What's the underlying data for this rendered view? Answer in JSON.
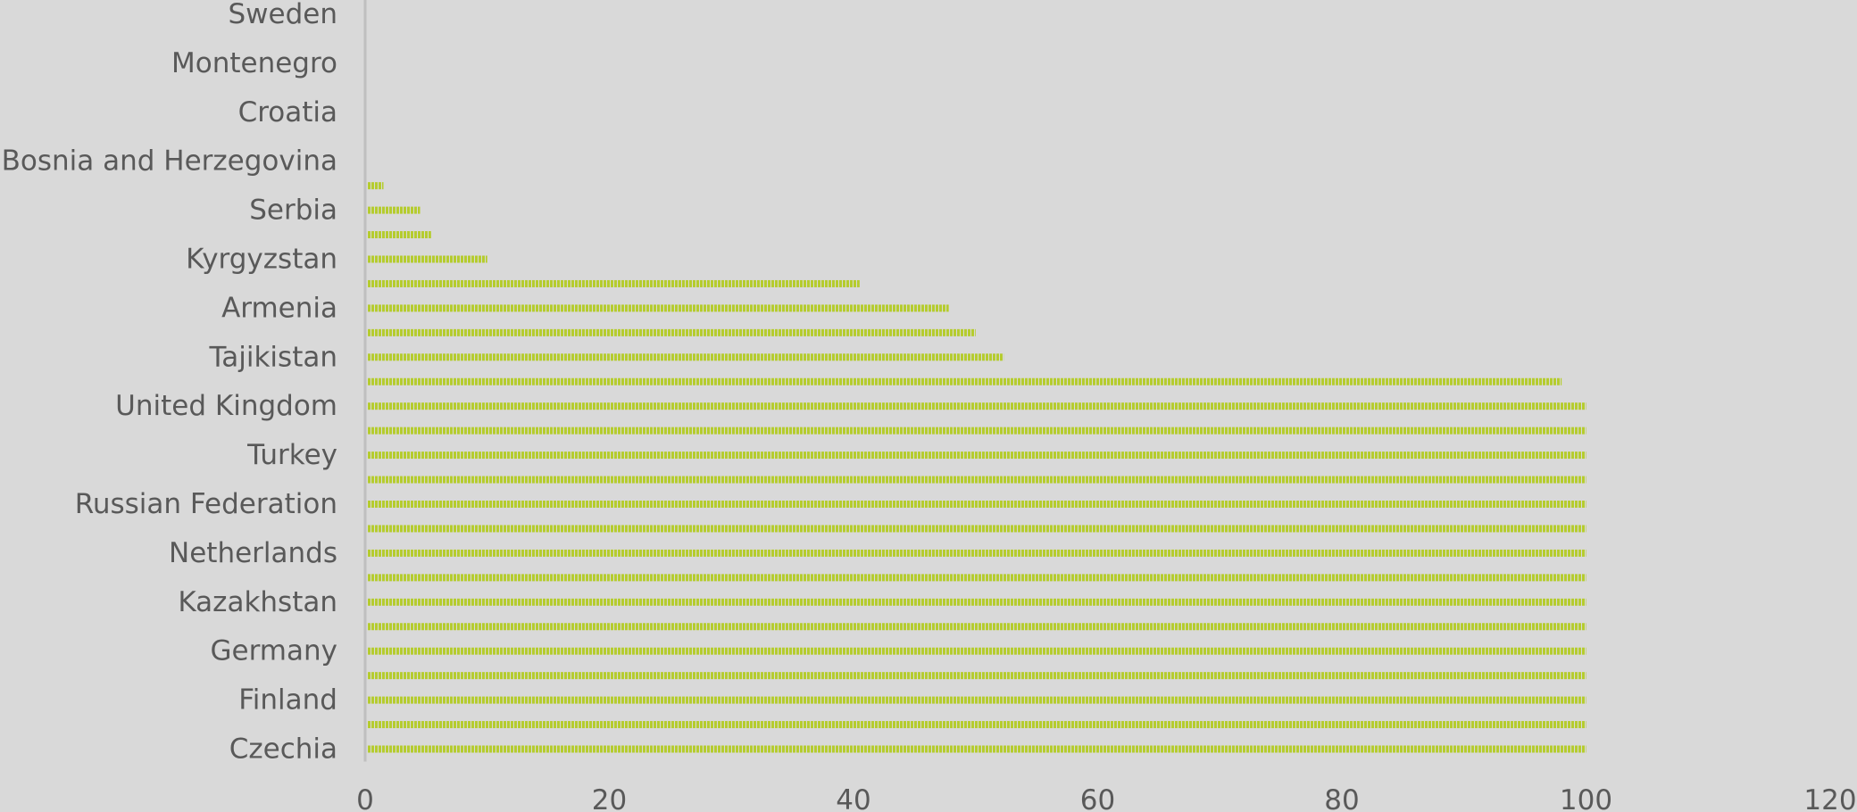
{
  "chart_data": {
    "type": "bar",
    "orientation": "horizontal",
    "categories": [
      "Sweden",
      "",
      "Montenegro",
      "",
      "Croatia",
      "",
      "Bosnia and Herzegovina",
      "",
      "Serbia",
      "",
      "Kyrgyzstan",
      "",
      "Armenia",
      "",
      "Tajikistan",
      "",
      "United Kingdom",
      "",
      "Turkey",
      "",
      "Russian Federation",
      "",
      "Netherlands",
      "",
      "Kazakhstan",
      "",
      "Germany",
      "",
      "Finland",
      "",
      "Czechia"
    ],
    "values": [
      0,
      0,
      0,
      0,
      0,
      0,
      0,
      1.5,
      4.5,
      5.4,
      10,
      40.5,
      47.8,
      50,
      52.3,
      98,
      100,
      100,
      100,
      100,
      100,
      100,
      100,
      100,
      100,
      100,
      100,
      100,
      100,
      100,
      100
    ],
    "xlim": [
      0,
      120
    ],
    "xticks": [
      0,
      20,
      40,
      60,
      80,
      100,
      120
    ],
    "title": "",
    "xlabel": "",
    "ylabel": "",
    "grid": false,
    "bar_color": "#b5cc2e",
    "background_color": "#d9d9d9"
  }
}
